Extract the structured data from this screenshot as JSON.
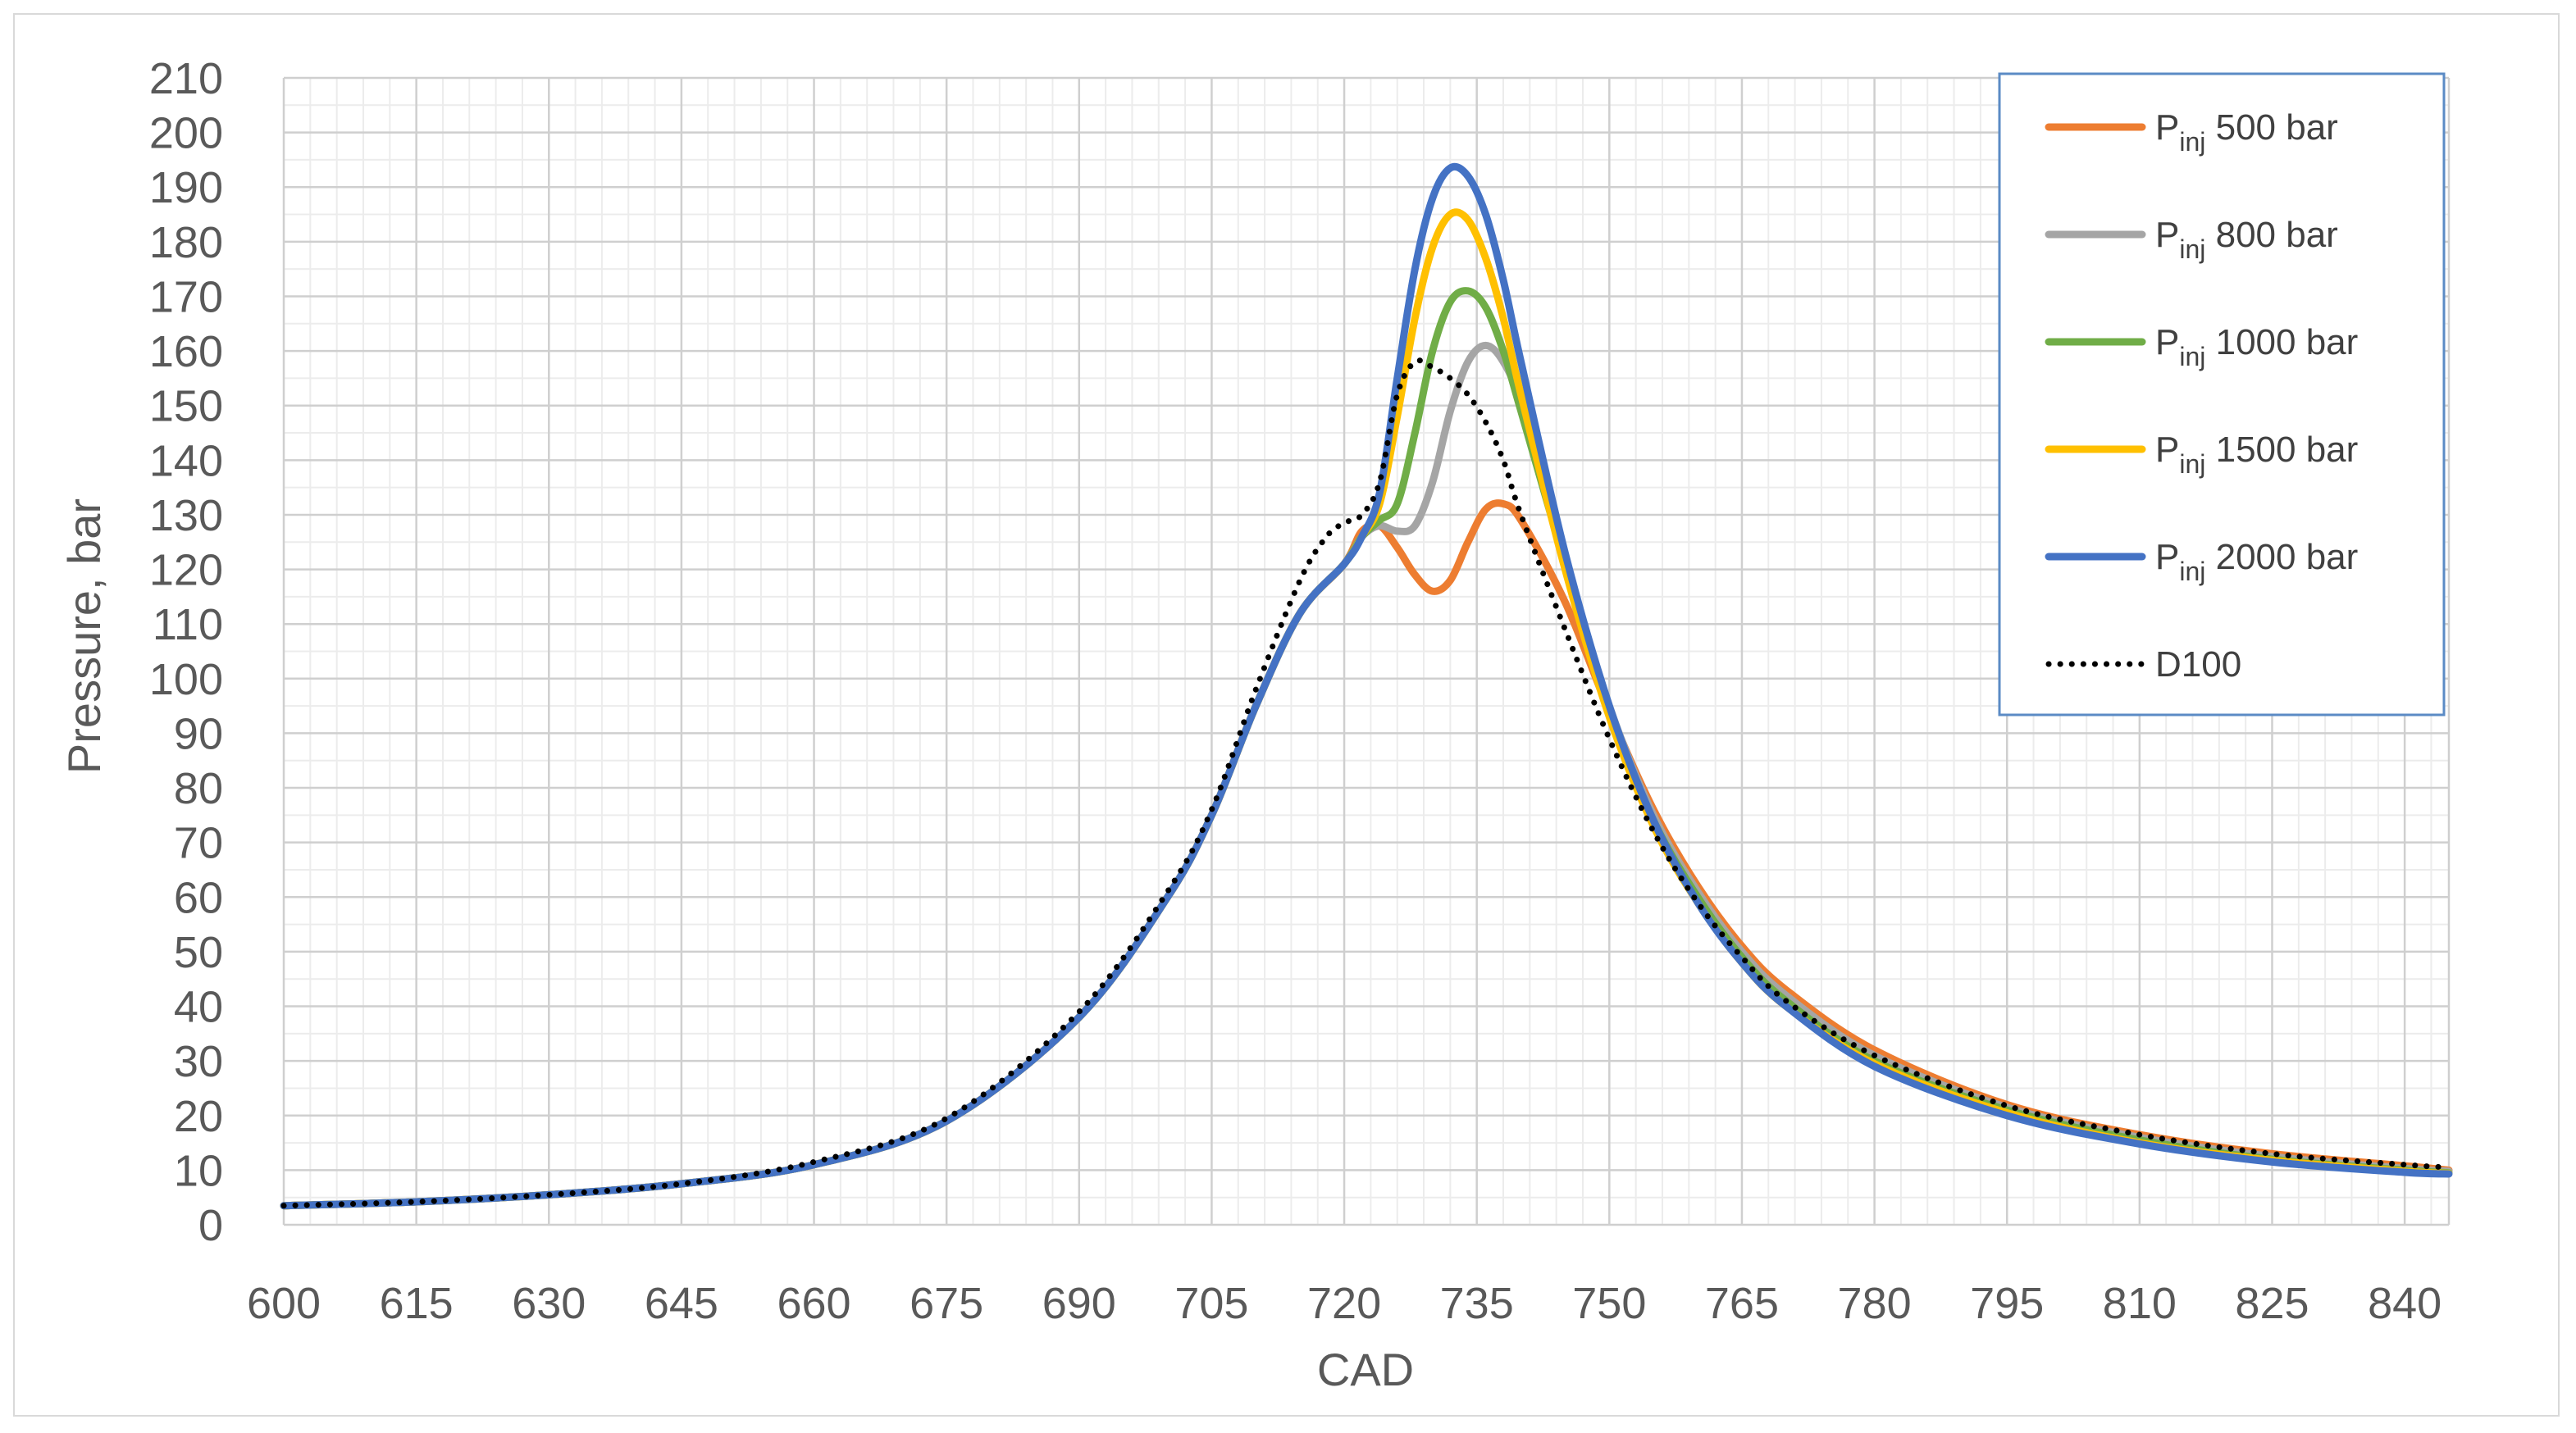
{
  "chart_data": {
    "type": "line",
    "title": "",
    "xlabel": "CAD",
    "ylabel": "Pressure, bar",
    "xlim": [
      600,
      845
    ],
    "ylim": [
      0,
      210
    ],
    "xticks": [
      600,
      615,
      630,
      645,
      660,
      675,
      690,
      705,
      720,
      735,
      750,
      765,
      780,
      795,
      810,
      825,
      840
    ],
    "yticks": [
      0,
      10,
      20,
      30,
      40,
      50,
      60,
      70,
      80,
      90,
      100,
      110,
      120,
      130,
      140,
      150,
      160,
      170,
      180,
      190,
      200,
      210
    ],
    "grid": true,
    "legend_position": "top-right",
    "series": [
      {
        "name": "P",
        "subscript": "inj",
        "suffix": " 500 bar",
        "color": "#ED7D31",
        "style": "solid",
        "points": [
          [
            600,
            3.5
          ],
          [
            615,
            4.2
          ],
          [
            630,
            5.5
          ],
          [
            645,
            7.5
          ],
          [
            660,
            11
          ],
          [
            675,
            19
          ],
          [
            690,
            38
          ],
          [
            700,
            60
          ],
          [
            705,
            75
          ],
          [
            710,
            95
          ],
          [
            715,
            112
          ],
          [
            720,
            121
          ],
          [
            722,
            127
          ],
          [
            724,
            128
          ],
          [
            726,
            124
          ],
          [
            728,
            119
          ],
          [
            730,
            116
          ],
          [
            732,
            118
          ],
          [
            734,
            125
          ],
          [
            736,
            131
          ],
          [
            738,
            132
          ],
          [
            740,
            129
          ],
          [
            745,
            114
          ],
          [
            750,
            94
          ],
          [
            755,
            76
          ],
          [
            760,
            62
          ],
          [
            765,
            51
          ],
          [
            770,
            43
          ],
          [
            780,
            32
          ],
          [
            795,
            22
          ],
          [
            810,
            16.5
          ],
          [
            825,
            13
          ],
          [
            840,
            10.8
          ],
          [
            845,
            10
          ]
        ]
      },
      {
        "name": "P",
        "subscript": "inj",
        "suffix": " 800 bar",
        "color": "#A5A5A5",
        "style": "solid",
        "points": [
          [
            600,
            3.5
          ],
          [
            615,
            4.2
          ],
          [
            630,
            5.5
          ],
          [
            645,
            7.5
          ],
          [
            660,
            11
          ],
          [
            675,
            19
          ],
          [
            690,
            38
          ],
          [
            700,
            60
          ],
          [
            705,
            75
          ],
          [
            710,
            95
          ],
          [
            715,
            112
          ],
          [
            720,
            121
          ],
          [
            722,
            126
          ],
          [
            724,
            128
          ],
          [
            726,
            127
          ],
          [
            728,
            128
          ],
          [
            730,
            136
          ],
          [
            732,
            149
          ],
          [
            734,
            158
          ],
          [
            736,
            161
          ],
          [
            738,
            158
          ],
          [
            740,
            150
          ],
          [
            745,
            122
          ],
          [
            750,
            95
          ],
          [
            755,
            75
          ],
          [
            760,
            61
          ],
          [
            765,
            50
          ],
          [
            770,
            42
          ],
          [
            780,
            31
          ],
          [
            795,
            21.5
          ],
          [
            810,
            16
          ],
          [
            825,
            12.5
          ],
          [
            840,
            10.3
          ],
          [
            845,
            9.8
          ]
        ]
      },
      {
        "name": "P",
        "subscript": "inj",
        "suffix": " 1000 bar",
        "color": "#70AD47",
        "style": "solid",
        "points": [
          [
            600,
            3.5
          ],
          [
            615,
            4.2
          ],
          [
            630,
            5.5
          ],
          [
            645,
            7.5
          ],
          [
            660,
            11
          ],
          [
            675,
            19
          ],
          [
            690,
            38
          ],
          [
            700,
            60
          ],
          [
            705,
            75
          ],
          [
            710,
            95
          ],
          [
            715,
            112
          ],
          [
            720,
            121
          ],
          [
            722,
            126
          ],
          [
            724,
            129
          ],
          [
            726,
            132
          ],
          [
            728,
            145
          ],
          [
            730,
            160
          ],
          [
            732,
            169
          ],
          [
            734,
            171
          ],
          [
            736,
            168
          ],
          [
            738,
            160
          ],
          [
            740,
            149
          ],
          [
            745,
            121
          ],
          [
            750,
            94
          ],
          [
            755,
            74
          ],
          [
            760,
            60
          ],
          [
            765,
            49
          ],
          [
            770,
            41
          ],
          [
            780,
            30
          ],
          [
            795,
            21
          ],
          [
            810,
            15.5
          ],
          [
            825,
            12
          ],
          [
            840,
            10
          ],
          [
            845,
            9.5
          ]
        ]
      },
      {
        "name": "P",
        "subscript": "inj",
        "suffix": " 1500 bar",
        "color": "#FFC000",
        "style": "solid",
        "points": [
          [
            600,
            3.5
          ],
          [
            615,
            4.2
          ],
          [
            630,
            5.5
          ],
          [
            645,
            7.5
          ],
          [
            660,
            11
          ],
          [
            675,
            19
          ],
          [
            690,
            38
          ],
          [
            700,
            60
          ],
          [
            705,
            75
          ],
          [
            710,
            95
          ],
          [
            715,
            112
          ],
          [
            720,
            121
          ],
          [
            722,
            126
          ],
          [
            724,
            132
          ],
          [
            726,
            148
          ],
          [
            728,
            166
          ],
          [
            730,
            179
          ],
          [
            732,
            185
          ],
          [
            734,
            184
          ],
          [
            736,
            177
          ],
          [
            738,
            166
          ],
          [
            740,
            152
          ],
          [
            745,
            120
          ],
          [
            750,
            93
          ],
          [
            755,
            73
          ],
          [
            760,
            59
          ],
          [
            765,
            48
          ],
          [
            770,
            40
          ],
          [
            780,
            29.5
          ],
          [
            795,
            20.5
          ],
          [
            810,
            15
          ],
          [
            825,
            11.8
          ],
          [
            840,
            9.8
          ],
          [
            845,
            9.4
          ]
        ]
      },
      {
        "name": "P",
        "subscript": "inj",
        "suffix": " 2000 bar",
        "color": "#4472C4",
        "style": "solid",
        "points": [
          [
            600,
            3.5
          ],
          [
            615,
            4.2
          ],
          [
            630,
            5.5
          ],
          [
            645,
            7.5
          ],
          [
            660,
            11
          ],
          [
            675,
            19
          ],
          [
            690,
            38
          ],
          [
            700,
            60
          ],
          [
            705,
            75
          ],
          [
            710,
            95
          ],
          [
            715,
            112
          ],
          [
            720,
            121
          ],
          [
            722,
            126
          ],
          [
            724,
            134
          ],
          [
            726,
            155
          ],
          [
            728,
            175
          ],
          [
            730,
            188
          ],
          [
            732,
            193.5
          ],
          [
            734,
            192
          ],
          [
            736,
            185
          ],
          [
            738,
            173
          ],
          [
            740,
            158
          ],
          [
            745,
            123
          ],
          [
            750,
            95
          ],
          [
            755,
            74
          ],
          [
            760,
            59
          ],
          [
            765,
            48
          ],
          [
            770,
            40
          ],
          [
            780,
            29
          ],
          [
            795,
            20
          ],
          [
            810,
            14.8
          ],
          [
            825,
            11.5
          ],
          [
            840,
            9.6
          ],
          [
            845,
            9.3
          ]
        ]
      },
      {
        "name": "D100",
        "color": "#000000",
        "style": "dotted",
        "points": [
          [
            600,
            3.5
          ],
          [
            615,
            4.2
          ],
          [
            630,
            5.5
          ],
          [
            645,
            7.5
          ],
          [
            660,
            11.5
          ],
          [
            675,
            19.5
          ],
          [
            690,
            39
          ],
          [
            700,
            61
          ],
          [
            705,
            76
          ],
          [
            710,
            98
          ],
          [
            715,
            118
          ],
          [
            718,
            126
          ],
          [
            720,
            128.5
          ],
          [
            722,
            130
          ],
          [
            724,
            136
          ],
          [
            726,
            152
          ],
          [
            728,
            158
          ],
          [
            730,
            157
          ],
          [
            732,
            155
          ],
          [
            734,
            152
          ],
          [
            736,
            147
          ],
          [
            738,
            140
          ],
          [
            740,
            130
          ],
          [
            745,
            109
          ],
          [
            750,
            89
          ],
          [
            755,
            72
          ],
          [
            760,
            59
          ],
          [
            765,
            49
          ],
          [
            770,
            41
          ],
          [
            780,
            31
          ],
          [
            795,
            21.8
          ],
          [
            810,
            16.5
          ],
          [
            825,
            13
          ],
          [
            840,
            11
          ],
          [
            845,
            10.5
          ]
        ]
      }
    ]
  }
}
